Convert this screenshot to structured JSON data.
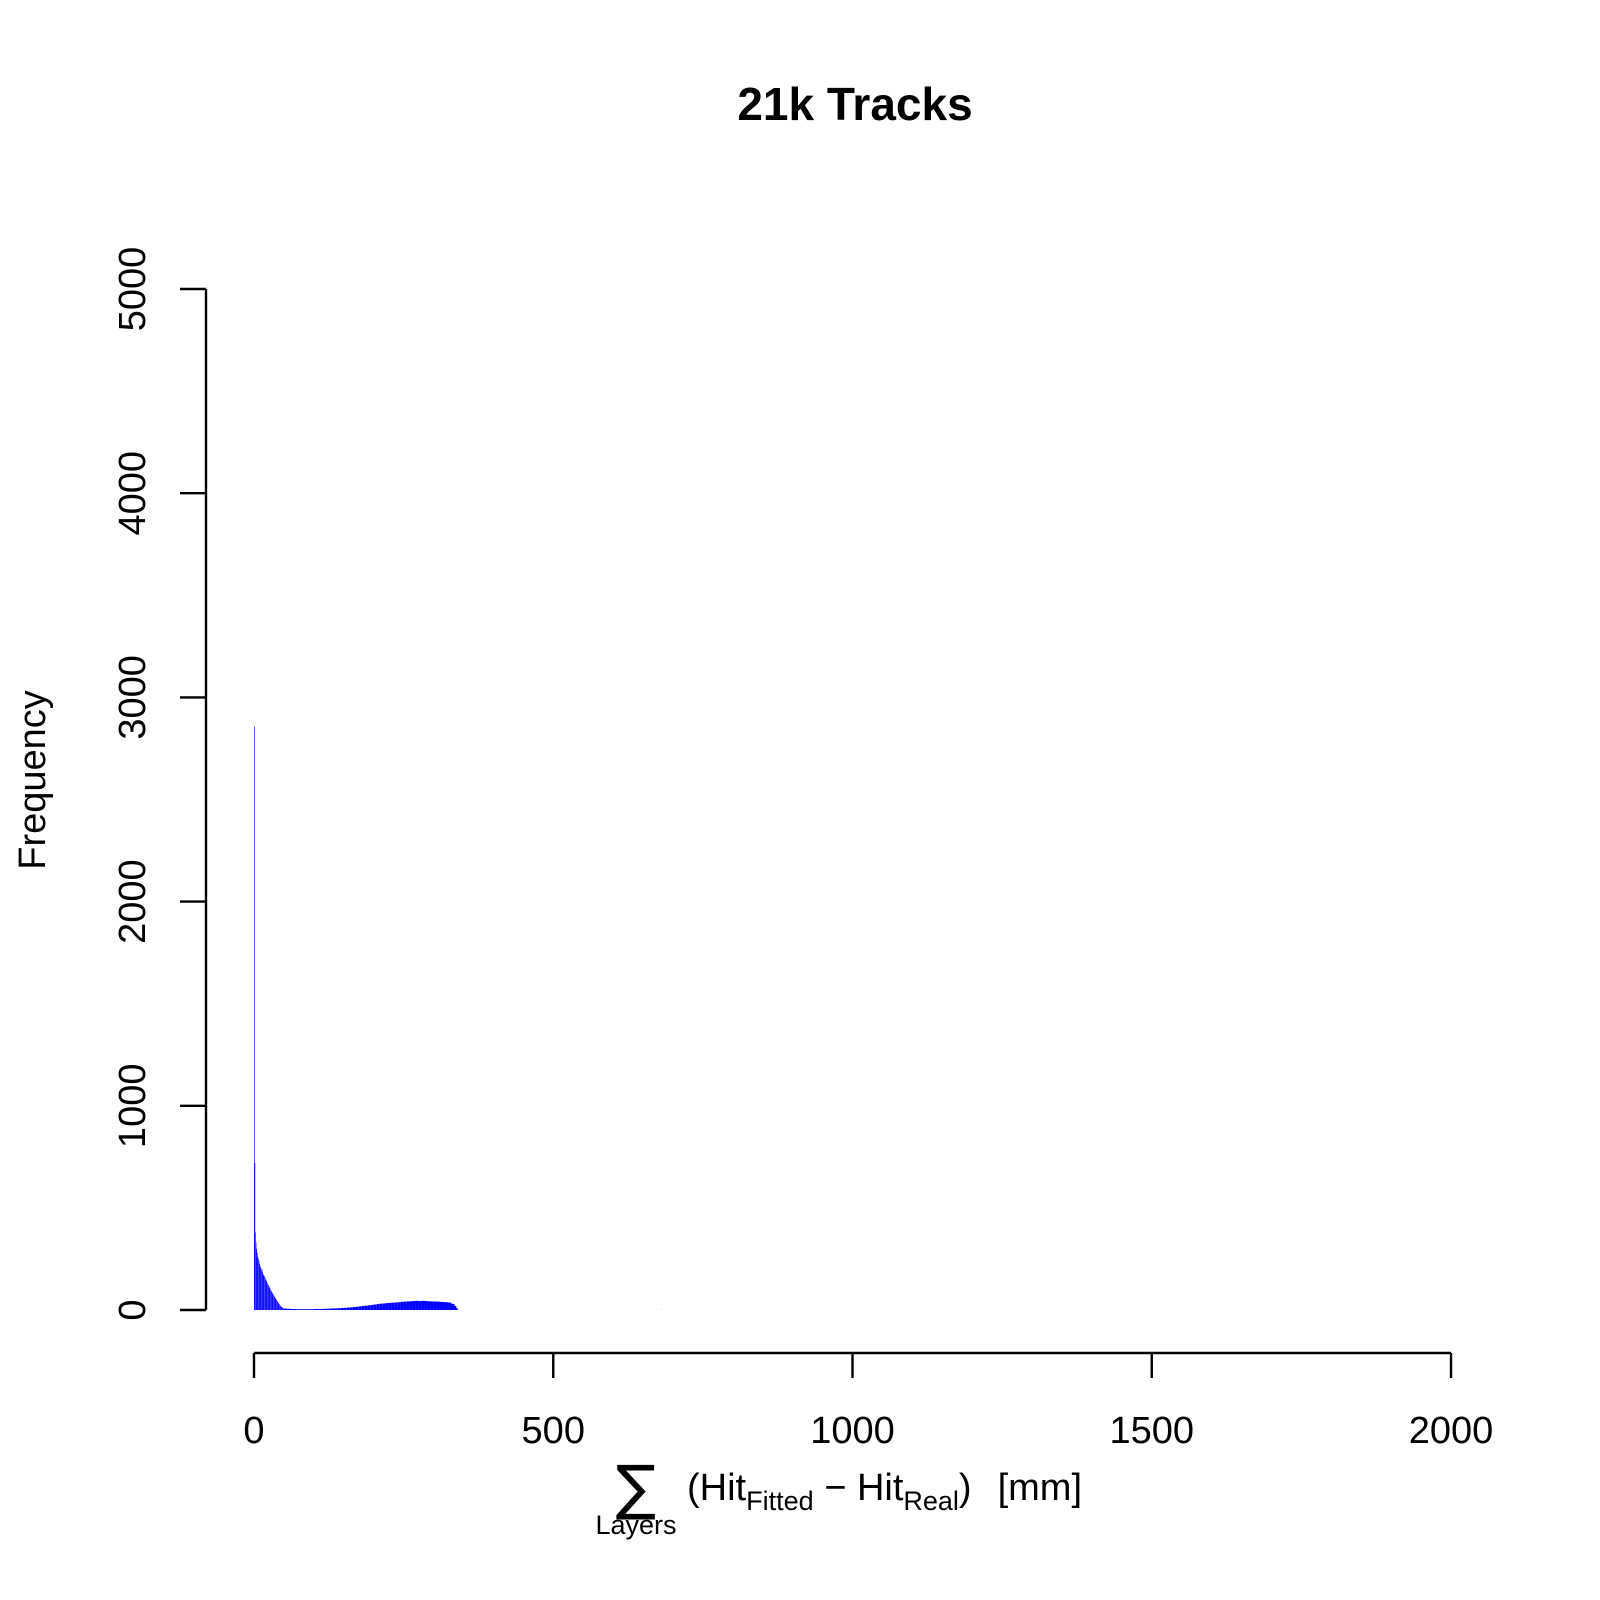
{
  "chart_data": {
    "type": "bar",
    "title": "21k Tracks",
    "ylabel": "Frequency",
    "xlabel": {
      "sum_symbol": "∑",
      "sum_subscript": "Layers",
      "open_paren": "(Hit",
      "fitted_subscript": "Fitted",
      "minus": " − Hit",
      "real_subscript": "Real",
      "close_paren": ")",
      "unit": "[mm]"
    },
    "xlim": [
      0,
      2000
    ],
    "ylim": [
      0,
      5000
    ],
    "x_ticks": [
      "0",
      "500",
      "1000",
      "1500",
      "2000"
    ],
    "y_ticks": [
      "0",
      "1000",
      "2000",
      "3000",
      "4000",
      "5000"
    ],
    "bar_color": "#0000ff",
    "bin_width": 1,
    "bins": [
      [
        0,
        2860
      ],
      [
        1,
        720
      ],
      [
        2,
        380
      ],
      [
        3,
        330
      ],
      [
        4,
        300
      ],
      [
        5,
        280
      ],
      [
        6,
        260
      ],
      [
        7,
        250
      ],
      [
        8,
        240
      ],
      [
        9,
        225
      ],
      [
        10,
        215
      ],
      [
        11,
        205
      ],
      [
        12,
        195
      ],
      [
        13,
        200
      ],
      [
        14,
        185
      ],
      [
        15,
        175
      ],
      [
        16,
        170
      ],
      [
        17,
        165
      ],
      [
        18,
        160
      ],
      [
        19,
        150
      ],
      [
        20,
        145
      ],
      [
        21,
        140
      ],
      [
        22,
        130
      ],
      [
        23,
        125
      ],
      [
        24,
        120
      ],
      [
        25,
        115
      ],
      [
        26,
        108
      ],
      [
        27,
        100
      ],
      [
        28,
        95
      ],
      [
        29,
        90
      ],
      [
        30,
        85
      ],
      [
        31,
        80
      ],
      [
        32,
        75
      ],
      [
        33,
        70
      ],
      [
        34,
        65
      ],
      [
        35,
        60
      ],
      [
        36,
        55
      ],
      [
        37,
        50
      ],
      [
        38,
        45
      ],
      [
        39,
        40
      ],
      [
        40,
        36
      ],
      [
        41,
        32
      ],
      [
        42,
        28
      ],
      [
        43,
        24
      ],
      [
        44,
        20
      ],
      [
        45,
        17
      ],
      [
        46,
        14
      ],
      [
        47,
        12
      ],
      [
        48,
        10
      ],
      [
        49,
        8
      ],
      [
        50,
        7
      ],
      [
        55,
        6
      ],
      [
        60,
        5
      ],
      [
        65,
        5
      ],
      [
        70,
        4
      ],
      [
        75,
        4
      ],
      [
        80,
        4
      ],
      [
        85,
        4
      ],
      [
        90,
        4
      ],
      [
        95,
        4
      ],
      [
        100,
        5
      ],
      [
        105,
        5
      ],
      [
        110,
        5
      ],
      [
        115,
        6
      ],
      [
        120,
        6
      ],
      [
        125,
        7
      ],
      [
        130,
        8
      ],
      [
        135,
        8
      ],
      [
        140,
        9
      ],
      [
        145,
        10
      ],
      [
        150,
        11
      ],
      [
        155,
        12
      ],
      [
        160,
        13
      ],
      [
        165,
        15
      ],
      [
        170,
        16
      ],
      [
        175,
        18
      ],
      [
        180,
        20
      ],
      [
        185,
        21
      ],
      [
        190,
        23
      ],
      [
        195,
        25
      ],
      [
        200,
        27
      ],
      [
        205,
        29
      ],
      [
        210,
        31
      ],
      [
        215,
        32
      ],
      [
        220,
        34
      ],
      [
        225,
        35
      ],
      [
        230,
        36
      ],
      [
        235,
        37
      ],
      [
        240,
        38
      ],
      [
        245,
        40
      ],
      [
        250,
        41
      ],
      [
        255,
        42
      ],
      [
        260,
        43
      ],
      [
        265,
        44
      ],
      [
        270,
        45
      ],
      [
        275,
        44
      ],
      [
        280,
        45
      ],
      [
        285,
        44
      ],
      [
        290,
        43
      ],
      [
        295,
        42
      ],
      [
        300,
        42
      ],
      [
        305,
        41
      ],
      [
        310,
        40
      ],
      [
        315,
        39
      ],
      [
        320,
        38
      ],
      [
        325,
        36
      ],
      [
        330,
        30
      ],
      [
        335,
        20
      ],
      [
        338,
        10
      ],
      [
        340,
        4
      ],
      [
        680,
        2
      ]
    ]
  }
}
